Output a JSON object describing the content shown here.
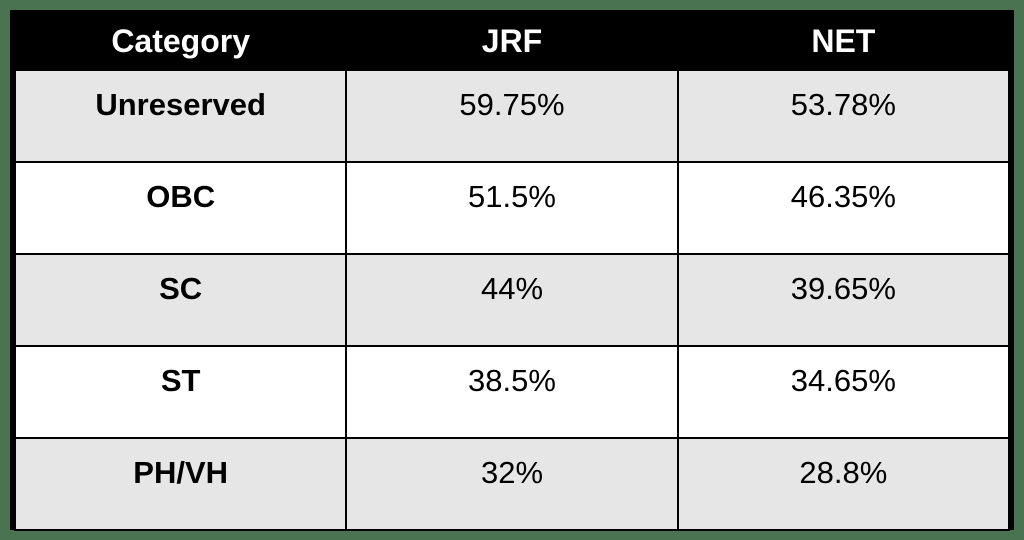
{
  "page": {
    "background_color": "#4a7352",
    "border_color": "#000000"
  },
  "table": {
    "header": {
      "category": "Category",
      "jrf": "JRF",
      "net": "NET",
      "background_color": "#000000",
      "text_color": "#ffffff"
    },
    "row_colors": {
      "alternate": "#e7e6e6",
      "base": "#ffffff"
    },
    "rows": [
      {
        "category": "Unreserved",
        "jrf": "59.75%",
        "net": "53.78%"
      },
      {
        "category": "OBC",
        "jrf": "51.5%",
        "net": "46.35%"
      },
      {
        "category": "SC",
        "jrf": "44%",
        "net": "39.65%"
      },
      {
        "category": "ST",
        "jrf": "38.5%",
        "net": "34.65%"
      },
      {
        "category": "PH/VH",
        "jrf": "32%",
        "net": "28.8%"
      }
    ]
  },
  "chart_data": {
    "type": "table",
    "title": "",
    "columns": [
      "Category",
      "JRF",
      "NET"
    ],
    "categories": [
      "Unreserved",
      "OBC",
      "SC",
      "ST",
      "PH/VH"
    ],
    "series": [
      {
        "name": "JRF",
        "values": [
          59.75,
          51.5,
          44,
          38.5,
          32
        ]
      },
      {
        "name": "NET",
        "values": [
          53.78,
          46.35,
          39.65,
          34.65,
          28.8
        ]
      }
    ],
    "value_unit": "percent"
  }
}
